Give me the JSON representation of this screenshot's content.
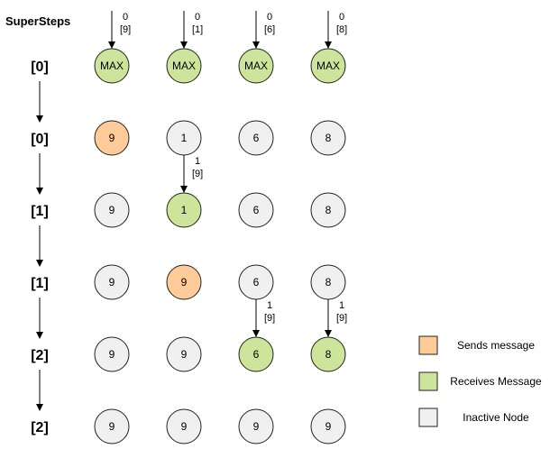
{
  "title": "SuperSteps",
  "colors": {
    "sends": "#FFCC99",
    "receives": "#CCE59A",
    "inactive": "#F0F0F0",
    "stroke": "#222222"
  },
  "supersteps": [
    "[0]",
    "[0]",
    "[1]",
    "[1]",
    "[2]",
    "[2]"
  ],
  "rows": [
    {
      "nodes": [
        {
          "label": "MAX",
          "state": "receives"
        },
        {
          "label": "MAX",
          "state": "receives"
        },
        {
          "label": "MAX",
          "state": "receives"
        },
        {
          "label": "MAX",
          "state": "receives"
        }
      ]
    },
    {
      "nodes": [
        {
          "label": "9",
          "state": "sends"
        },
        {
          "label": "1",
          "state": "inactive"
        },
        {
          "label": "6",
          "state": "inactive"
        },
        {
          "label": "8",
          "state": "inactive"
        }
      ]
    },
    {
      "nodes": [
        {
          "label": "9",
          "state": "inactive"
        },
        {
          "label": "1",
          "state": "receives"
        },
        {
          "label": "6",
          "state": "inactive"
        },
        {
          "label": "8",
          "state": "inactive"
        }
      ]
    },
    {
      "nodes": [
        {
          "label": "9",
          "state": "inactive"
        },
        {
          "label": "9",
          "state": "sends"
        },
        {
          "label": "6",
          "state": "inactive"
        },
        {
          "label": "8",
          "state": "inactive"
        }
      ]
    },
    {
      "nodes": [
        {
          "label": "9",
          "state": "inactive"
        },
        {
          "label": "9",
          "state": "inactive"
        },
        {
          "label": "6",
          "state": "receives"
        },
        {
          "label": "8",
          "state": "receives"
        }
      ]
    },
    {
      "nodes": [
        {
          "label": "9",
          "state": "inactive"
        },
        {
          "label": "9",
          "state": "inactive"
        },
        {
          "label": "9",
          "state": "inactive"
        },
        {
          "label": "9",
          "state": "inactive"
        }
      ]
    }
  ],
  "messages": [
    {
      "row": 0,
      "col": 0,
      "line1": "0",
      "line2": "[9]"
    },
    {
      "row": 0,
      "col": 1,
      "line1": "0",
      "line2": "[1]"
    },
    {
      "row": 0,
      "col": 2,
      "line1": "0",
      "line2": "[6]"
    },
    {
      "row": 0,
      "col": 3,
      "line1": "0",
      "line2": "[8]"
    },
    {
      "row": 2,
      "col": 1,
      "line1": "1",
      "line2": "[9]"
    },
    {
      "row": 4,
      "col": 2,
      "line1": "1",
      "line2": "[9]"
    },
    {
      "row": 4,
      "col": 3,
      "line1": "1",
      "line2": "[9]"
    }
  ],
  "legend": [
    {
      "state": "sends",
      "label": "Sends message"
    },
    {
      "state": "receives",
      "label": "Receives Message"
    },
    {
      "state": "inactive",
      "label": "Inactive Node"
    }
  ]
}
